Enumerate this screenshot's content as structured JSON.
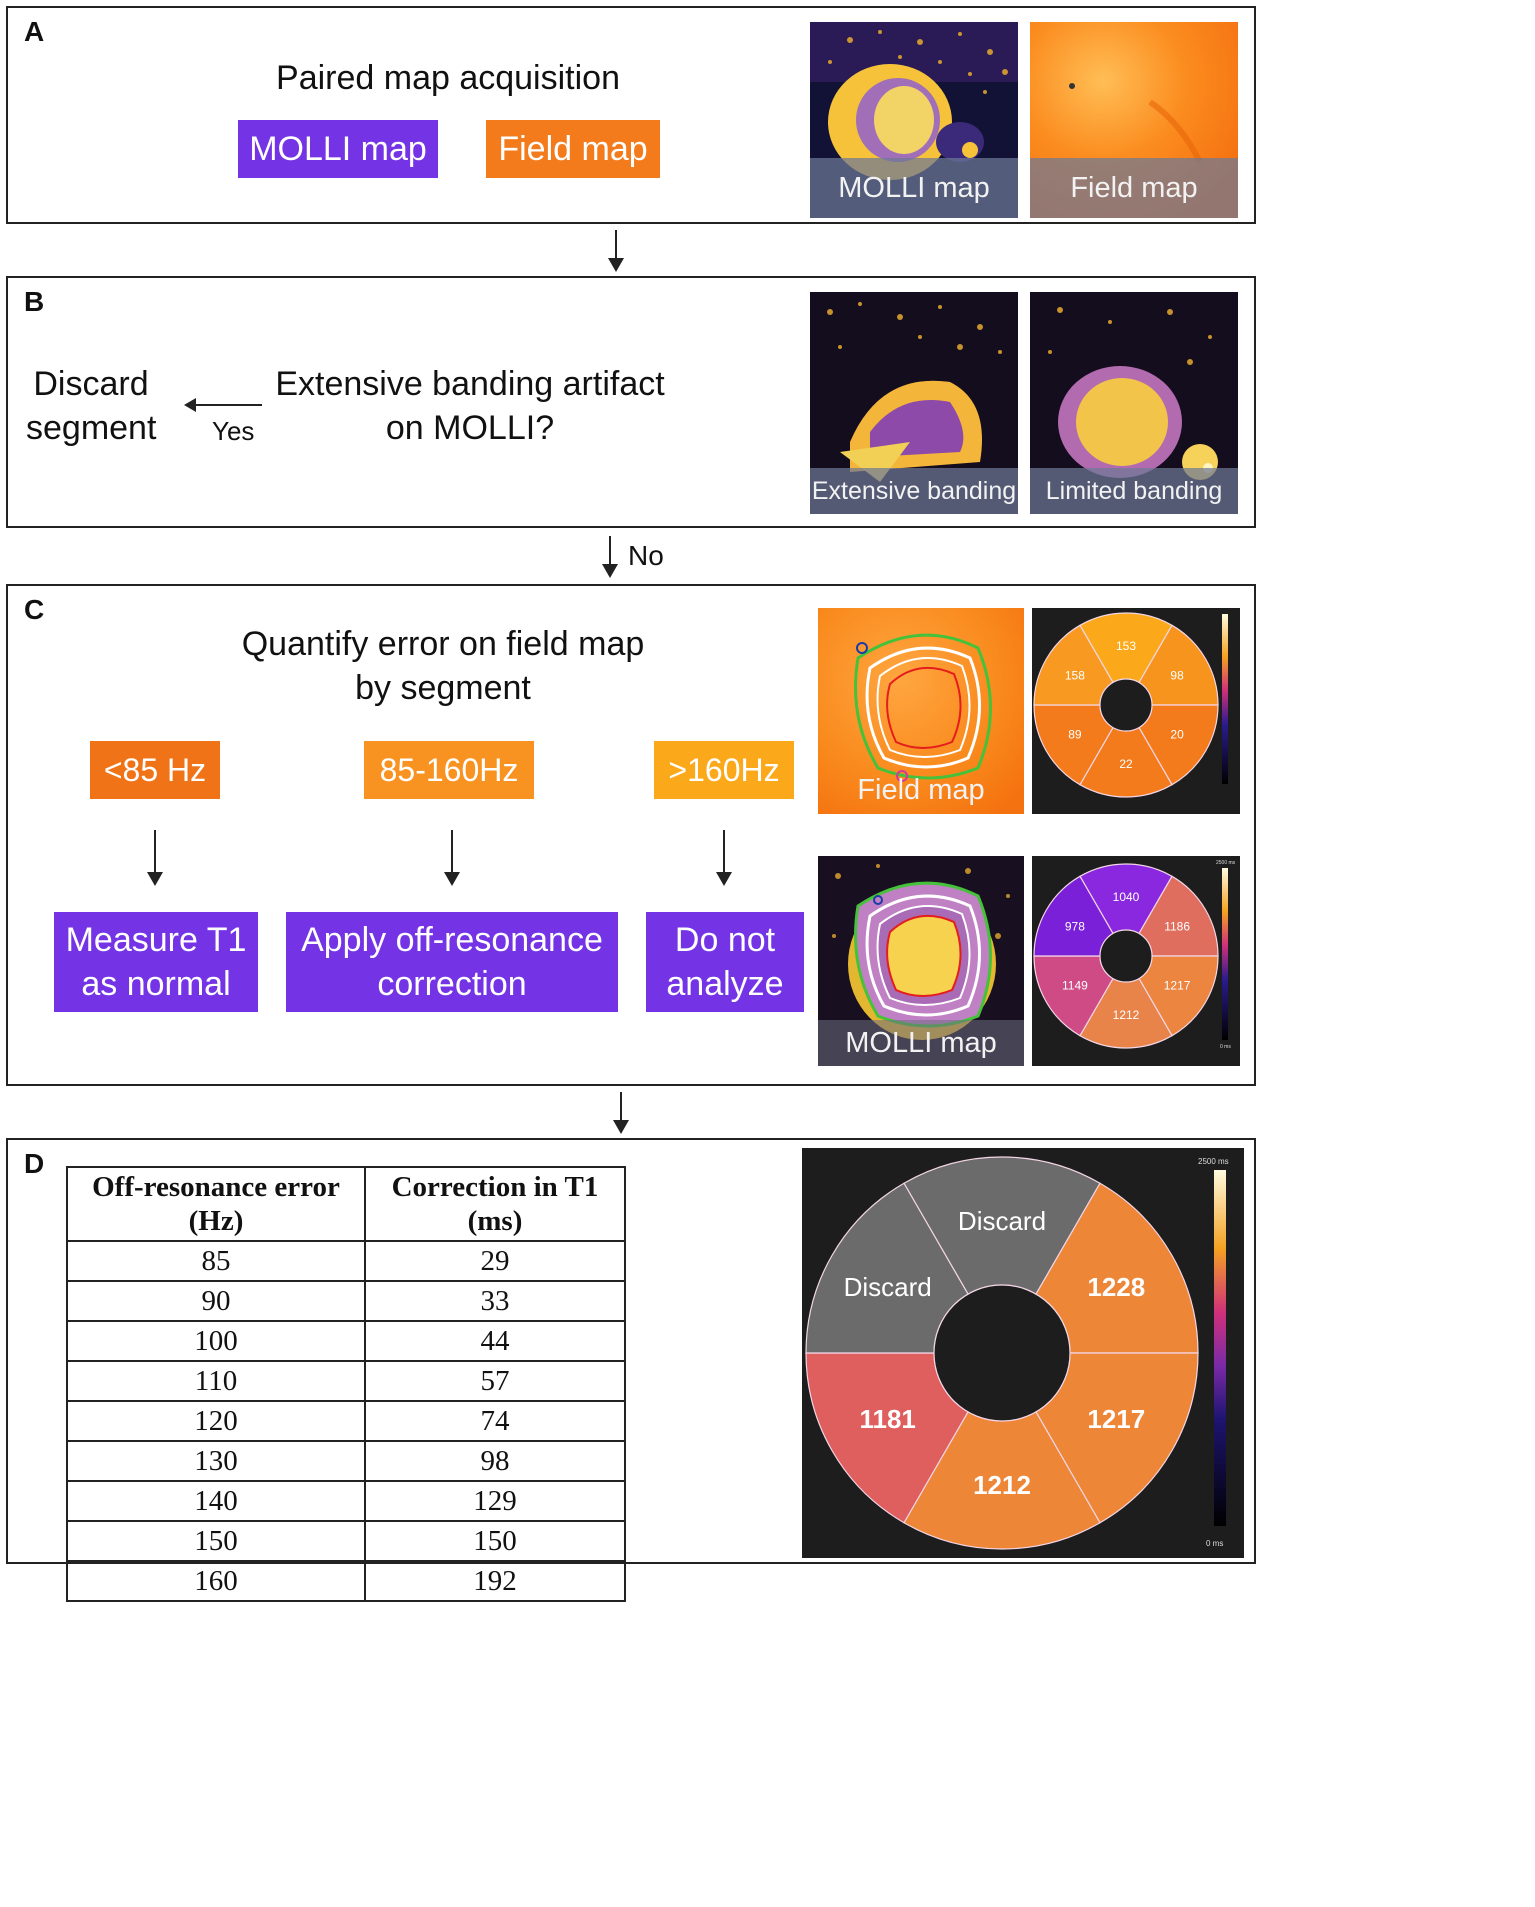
{
  "panel_a": {
    "letter": "A",
    "heading": "Paired map acquisition",
    "molli_box": "MOLLI map",
    "field_box": "Field map",
    "img1_caption": "MOLLI map",
    "img2_caption": "Field map"
  },
  "panel_b": {
    "letter": "B",
    "question_line1": "Extensive banding artifact",
    "question_line2": "on MOLLI?",
    "yes_label": "Yes",
    "discard_line1": "Discard",
    "discard_line2": "segment",
    "img1_caption": "Extensive banding",
    "img2_caption": "Limited banding",
    "no_label": "No"
  },
  "panel_c": {
    "letter": "C",
    "heading_line1": "Quantify error on field map",
    "heading_line2": "by segment",
    "thresholds": [
      "<85 Hz",
      "85-160Hz",
      ">160Hz"
    ],
    "actions": [
      {
        "line1": "Measure T1",
        "line2": "as normal"
      },
      {
        "line1": "Apply off-resonance",
        "line2": "correction"
      },
      {
        "line1": "Do not",
        "line2": "analyze"
      }
    ],
    "field_img_caption": "Field map",
    "molli_img_caption": "MOLLI map",
    "field_bullseye": [
      "153",
      "98",
      "20",
      "22",
      "89",
      "158"
    ],
    "molli_bullseye": [
      "1040",
      "1186",
      "1217",
      "1212",
      "1149",
      "978"
    ],
    "molli_scale_top": "2500 ms",
    "molli_scale_bottom": "0 ms"
  },
  "panel_d": {
    "letter": "D",
    "table": {
      "headers": [
        [
          "Off-resonance error",
          "(Hz)"
        ],
        [
          "Correction in T1",
          "(ms)"
        ]
      ],
      "rows": [
        [
          "85",
          "29"
        ],
        [
          "90",
          "33"
        ],
        [
          "100",
          "44"
        ],
        [
          "110",
          "57"
        ],
        [
          "120",
          "74"
        ],
        [
          "130",
          "98"
        ],
        [
          "140",
          "129"
        ],
        [
          "150",
          "150"
        ],
        [
          "160",
          "192"
        ]
      ]
    },
    "bullseye": [
      "Discard",
      "1228",
      "1217",
      "1212",
      "1181",
      "Discard"
    ],
    "scale_top": "2500 ms",
    "scale_bottom": "0 ms"
  }
}
